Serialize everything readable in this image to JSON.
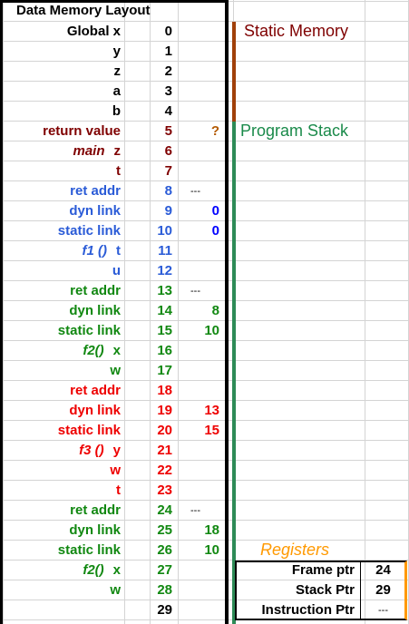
{
  "title": "Data Memory Layout",
  "rows": [
    {
      "label": "Global x",
      "addr": "0",
      "value": "",
      "color": "#000000"
    },
    {
      "label": "y",
      "addr": "1",
      "value": "",
      "color": "#000000"
    },
    {
      "label": "z",
      "addr": "2",
      "value": "",
      "color": "#000000"
    },
    {
      "label": "a",
      "addr": "3",
      "value": "",
      "color": "#000000"
    },
    {
      "label": "b",
      "addr": "4",
      "value": "",
      "color": "#000000"
    },
    {
      "label": "return value",
      "addr": "5",
      "value": "?",
      "color": "#7f0000",
      "value_color": "#b35a00"
    },
    {
      "fn": "main",
      "label": "z",
      "addr": "6",
      "value": "",
      "color": "#7f0000"
    },
    {
      "label": "t",
      "addr": "7",
      "value": "",
      "color": "#7f0000"
    },
    {
      "label": "ret addr",
      "addr": "8",
      "value": "---",
      "color": "#2a5bd7",
      "value_color": "#000000"
    },
    {
      "label": "dyn link",
      "addr": "9",
      "value": "0",
      "color": "#2a5bd7",
      "value_color": "#0000ff"
    },
    {
      "label": "static link",
      "addr": "10",
      "value": "0",
      "color": "#2a5bd7",
      "value_color": "#0000ff"
    },
    {
      "fn": "f1 ()",
      "label": "t",
      "addr": "11",
      "value": "",
      "color": "#2a5bd7"
    },
    {
      "label": "u",
      "addr": "12",
      "value": "",
      "color": "#2a5bd7"
    },
    {
      "label": "ret addr",
      "addr": "13",
      "value": "---",
      "color": "#118811",
      "value_color": "#000000"
    },
    {
      "label": "dyn link",
      "addr": "14",
      "value": "8",
      "color": "#118811"
    },
    {
      "label": "static link",
      "addr": "15",
      "value": "10",
      "color": "#118811"
    },
    {
      "fn": "f2()",
      "label": "x",
      "addr": "16",
      "value": "",
      "color": "#118811"
    },
    {
      "label": "w",
      "addr": "17",
      "value": "",
      "color": "#118811"
    },
    {
      "label": "ret addr",
      "addr": "18",
      "value": "",
      "color": "#ee0000"
    },
    {
      "label": "dyn link",
      "addr": "19",
      "value": "13",
      "color": "#ee0000"
    },
    {
      "label": "static link",
      "addr": "20",
      "value": "15",
      "color": "#ee0000"
    },
    {
      "fn": "f3 ()",
      "label": "y",
      "addr": "21",
      "value": "",
      "color": "#ee0000"
    },
    {
      "label": "w",
      "addr": "22",
      "value": "",
      "color": "#ee0000"
    },
    {
      "label": "t",
      "addr": "23",
      "value": "",
      "color": "#ee0000"
    },
    {
      "label": "ret addr",
      "addr": "24",
      "value": "---",
      "color": "#118811",
      "value_color": "#000000"
    },
    {
      "label": "dyn link",
      "addr": "25",
      "value": "18",
      "color": "#118811"
    },
    {
      "label": "static link",
      "addr": "26",
      "value": "10",
      "color": "#118811"
    },
    {
      "fn": "f2()",
      "label": "x",
      "addr": "27",
      "value": "",
      "color": "#118811"
    },
    {
      "label": "w",
      "addr": "28",
      "value": "",
      "color": "#118811"
    },
    {
      "label": "",
      "addr": "29",
      "value": "",
      "color": "#000000"
    }
  ],
  "annotations": {
    "static_memory": "Static Memory",
    "program_stack": "Program Stack",
    "registers": "Registers"
  },
  "colors": {
    "static_bar": "#a0400a",
    "stack_bar": "#2e8b57",
    "registers_text": "#ff9900",
    "registers_bar": "#ff9900",
    "static_text": "#7f0000",
    "stack_text": "#1a8a4a"
  },
  "registers": [
    {
      "name": "Frame ptr",
      "value": "24"
    },
    {
      "name": "Stack Ptr",
      "value": "29"
    },
    {
      "name": "Instruction Ptr",
      "value": "---"
    }
  ]
}
